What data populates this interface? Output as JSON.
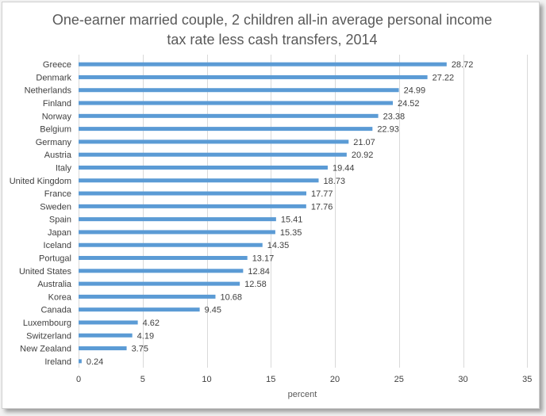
{
  "chart_data": {
    "type": "bar",
    "orientation": "horizontal",
    "title": "One-earner married couple, 2 children all-in average personal income tax rate less cash transfers, 2014",
    "title_lines": [
      "One-earner married couple, 2 children all-in average personal income",
      "tax rate less cash transfers, 2014"
    ],
    "xlabel": "percent",
    "ylabel": "",
    "xlim": [
      0,
      35
    ],
    "xticks": [
      0,
      5,
      10,
      15,
      20,
      25,
      30,
      35
    ],
    "grid": true,
    "legend": "none",
    "bar_color": "#5b9bd5",
    "categories": [
      "Greece",
      "Denmark",
      "Netherlands",
      "Finland",
      "Norway",
      "Belgium",
      "Germany",
      "Austria",
      "Italy",
      "United Kingdom",
      "France",
      "Sweden",
      "Spain",
      "Japan",
      "Iceland",
      "Portugal",
      "United States",
      "Australia",
      "Korea",
      "Canada",
      "Luxembourg",
      "Switzerland",
      "New Zealand",
      "Ireland"
    ],
    "values": [
      28.72,
      27.22,
      24.99,
      24.52,
      23.38,
      22.93,
      21.07,
      20.92,
      19.44,
      18.73,
      17.77,
      17.76,
      15.41,
      15.35,
      14.35,
      13.17,
      12.84,
      12.58,
      10.68,
      9.45,
      4.62,
      4.19,
      3.75,
      0.24
    ],
    "value_labels": [
      "28.72",
      "27.22",
      "24.99",
      "24.52",
      "23.38",
      "22.93",
      "21.07",
      "20.92",
      "19.44",
      "18.73",
      "17.77",
      "17.76",
      "15.41",
      "15.35",
      "14.35",
      "13.17",
      "12.84",
      "12.58",
      "10.68",
      "9.45",
      "4.62",
      "4.19",
      "3.75",
      "0.24"
    ]
  }
}
